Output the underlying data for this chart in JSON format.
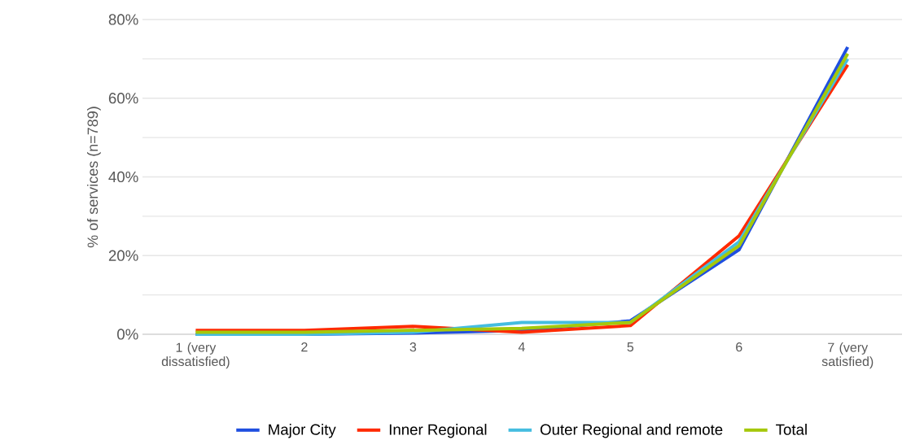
{
  "chart_data": {
    "type": "line",
    "ylabel": "% of services (n=789)",
    "categories": [
      "1 (very dissatisfied)",
      "2",
      "3",
      "4",
      "5",
      "6",
      "7 (very satisfied)"
    ],
    "series": [
      {
        "name": "Major City",
        "color": "#1f4fe0",
        "values": [
          0,
          0,
          0.3,
          1,
          3.4,
          21.5,
          73
        ]
      },
      {
        "name": "Inner Regional",
        "color": "#ff2a00",
        "values": [
          1,
          1,
          2,
          0.5,
          2.2,
          25,
          68.5
        ]
      },
      {
        "name": "Outer Regional and remote",
        "color": "#45bde0",
        "values": [
          0,
          0,
          0.5,
          3,
          3,
          23.5,
          70
        ]
      },
      {
        "name": "Total",
        "color": "#a5c80a",
        "values": [
          0.5,
          0.5,
          1,
          1.5,
          3,
          22.5,
          71.3
        ]
      }
    ],
    "ylim": [
      0,
      80
    ],
    "yticks": [
      {
        "value": 0,
        "label": "0%"
      },
      {
        "value": 10,
        "label": null
      },
      {
        "value": 20,
        "label": "20%"
      },
      {
        "value": 30,
        "label": null
      },
      {
        "value": 40,
        "label": "40%"
      },
      {
        "value": 50,
        "label": null
      },
      {
        "value": 60,
        "label": "60%"
      },
      {
        "value": 70,
        "label": null
      },
      {
        "value": 80,
        "label": "80%"
      }
    ],
    "grid": "y",
    "legend": "bottom",
    "marker": "none",
    "line_style": "solid"
  }
}
